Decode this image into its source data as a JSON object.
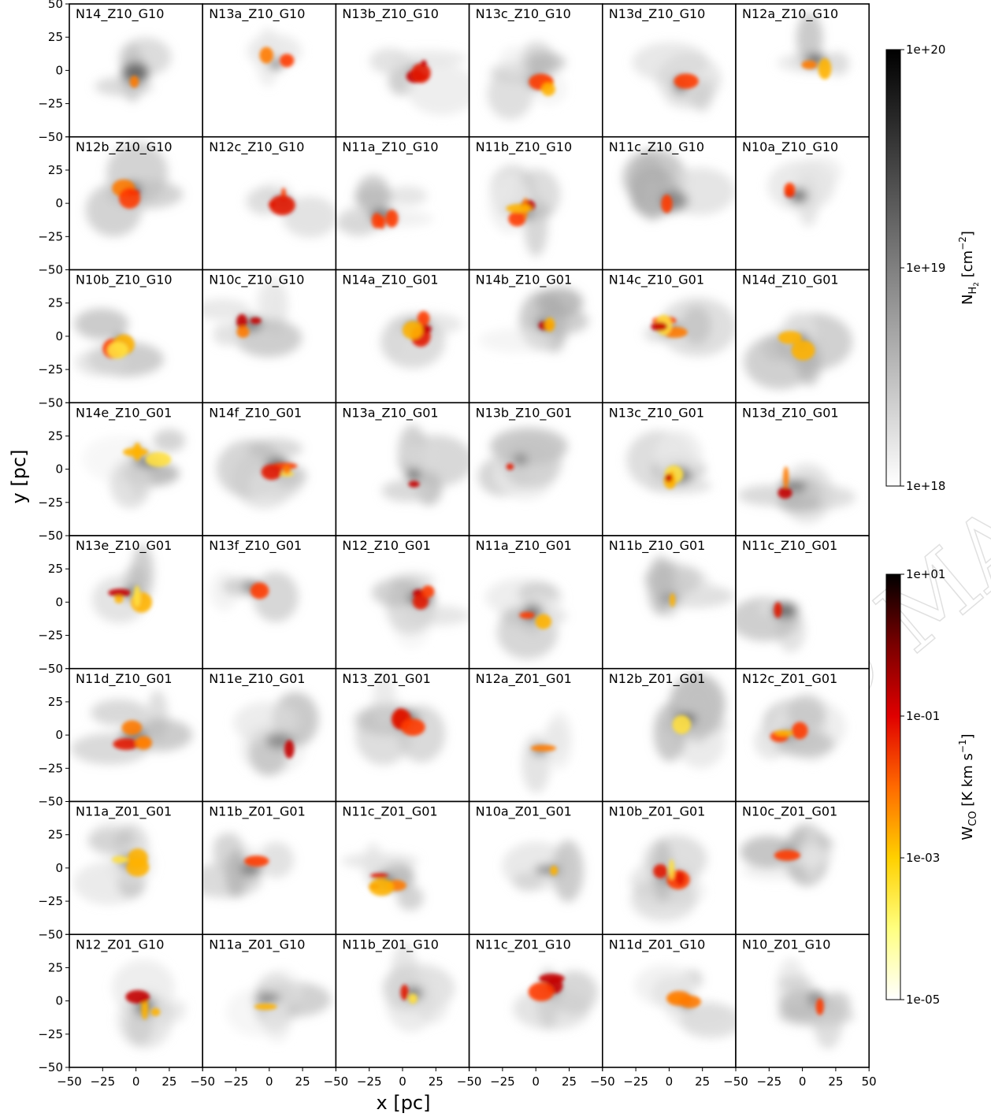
{
  "chart_data": {
    "type": "heatmap",
    "layout": {
      "rows": 8,
      "cols": 6
    },
    "xlabel": "x [pc]",
    "ylabel": "y [pc]",
    "xlim": [
      -50,
      50
    ],
    "ylim": [
      -50,
      50
    ],
    "x_ticks": [
      -50,
      -25,
      0,
      25,
      50
    ],
    "y_ticks": [
      -50,
      -25,
      0,
      25,
      50
    ],
    "x_tick_labels": [
      "−50",
      "−25",
      "0",
      "25"
    ],
    "x_tick_label_last": "50",
    "y_tick_labels": [
      "−50",
      "−25",
      "0",
      "25"
    ],
    "y_tick_label_top": "50",
    "panels": [
      "N14_Z10_G10",
      "N13a_Z10_G10",
      "N13b_Z10_G10",
      "N13c_Z10_G10",
      "N13d_Z10_G10",
      "N12a_Z10_G10",
      "N12b_Z10_G10",
      "N12c_Z10_G10",
      "N11a_Z10_G10",
      "N11b_Z10_G10",
      "N11c_Z10_G10",
      "N10a_Z10_G10",
      "N10b_Z10_G10",
      "N10c_Z10_G10",
      "N14a_Z10_G01",
      "N14b_Z10_G01",
      "N14c_Z10_G01",
      "N14d_Z10_G01",
      "N14e_Z10_G01",
      "N14f_Z10_G01",
      "N13a_Z10_G01",
      "N13b_Z10_G01",
      "N13c_Z10_G01",
      "N13d_Z10_G01",
      "N13e_Z10_G01",
      "N13f_Z10_G01",
      "N12_Z10_G01",
      "N11a_Z10_G01",
      "N11b_Z10_G01",
      "N11c_Z10_G01",
      "N11d_Z10_G01",
      "N11e_Z10_G01",
      "N13_Z01_G01",
      "N12a_Z01_G01",
      "N12b_Z01_G01",
      "N12c_Z01_G01",
      "N11a_Z01_G01",
      "N11b_Z01_G01",
      "N11c_Z01_G01",
      "N10a_Z01_G01",
      "N10b_Z01_G01",
      "N10c_Z01_G01",
      "N12_Z01_G10",
      "N11a_Z01_G10",
      "N11b_Z01_G10",
      "N11c_Z01_G10",
      "N11d_Z01_G10",
      "N10_Z01_G10"
    ],
    "colorbars": [
      {
        "name": "NH2",
        "label": "N",
        "sub": "H",
        "subsub": "2",
        "unit_pre": " [cm",
        "unit_exp": "−2",
        "unit_post": "]",
        "ticks": [
          "1e+20",
          "1e+19",
          "1e+18"
        ],
        "cmap": [
          "#000000",
          "#ffffff"
        ]
      },
      {
        "name": "WCO",
        "label": "W",
        "sub": "CO",
        "unit_pre": " [K km s",
        "unit_exp": "−1",
        "unit_post": "]",
        "ticks": [
          "1e+01",
          "1e-01",
          "1e-03",
          "1e-05"
        ],
        "cmap": [
          "#000000",
          "#7a0000",
          "#e00000",
          "#ff6a00",
          "#ffd000",
          "#ffff80",
          "#ffffff"
        ]
      }
    ]
  },
  "watermark": "ACCEPTED MANUSCRIPT"
}
